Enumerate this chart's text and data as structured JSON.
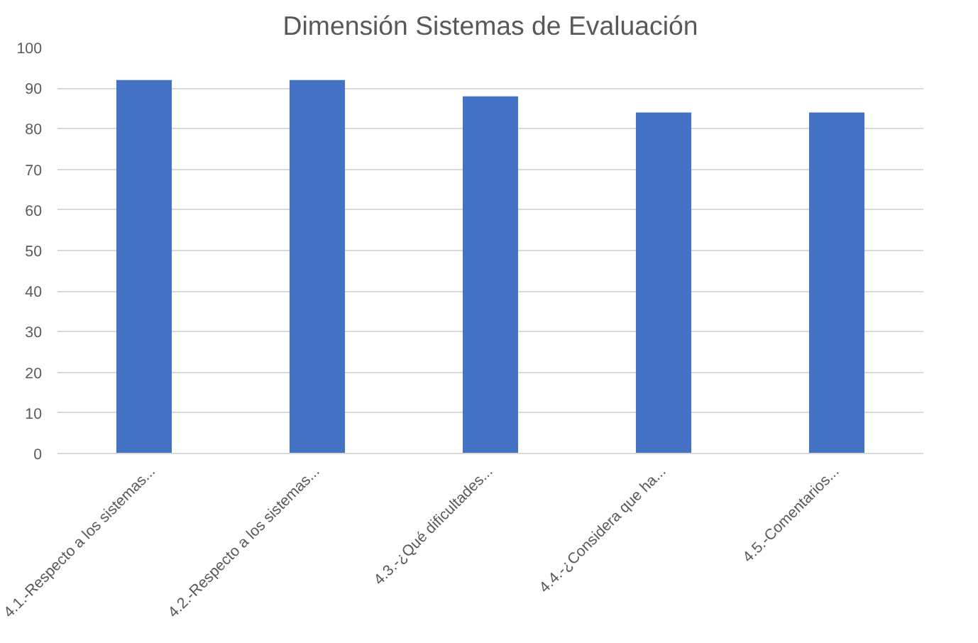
{
  "chart_data": {
    "type": "bar",
    "title": "Dimensión Sistemas de Evaluación",
    "categories": [
      "4.1.-Respecto a los sistemas...",
      "4.2.-Respecto a los sistemas...",
      "4.3.-¿Qué dificultades...",
      "4.4.-¿Considera que ha...",
      "4.5.-Comentarios..."
    ],
    "values": [
      92,
      92,
      88,
      84,
      84
    ],
    "color": "#4472c4",
    "ylim": [
      0,
      100
    ],
    "yticks": [
      0,
      10,
      20,
      30,
      40,
      50,
      60,
      70,
      80,
      90,
      100
    ],
    "grid": "y"
  }
}
